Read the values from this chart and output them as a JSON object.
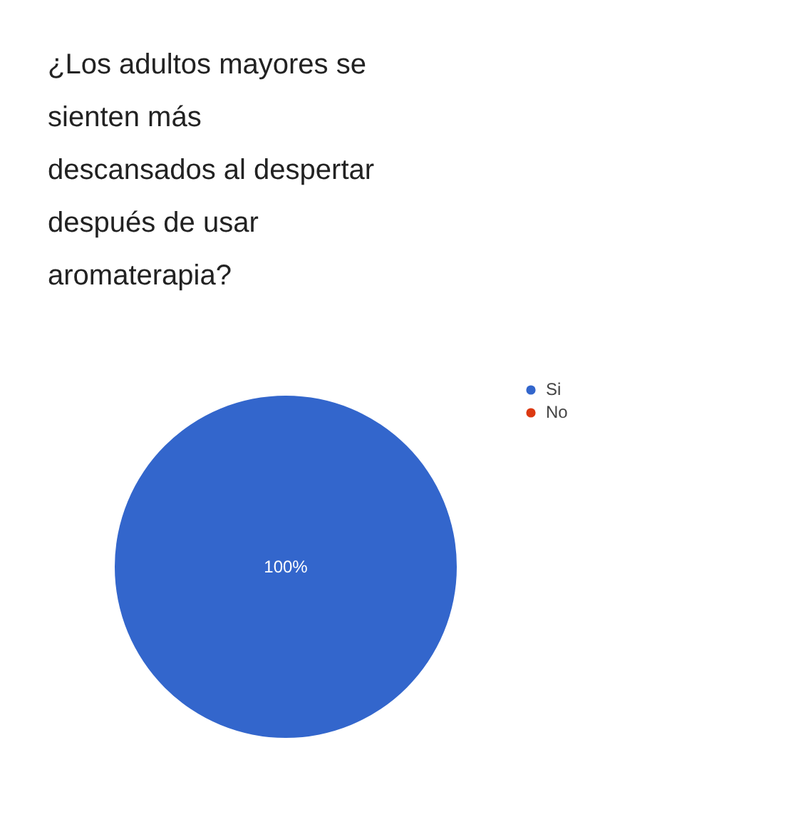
{
  "chart_data": {
    "type": "pie",
    "title": "¿Los adultos mayores se\nsienten más\ndescansados al despertar\ndespués de usar\naromaterapia?",
    "categories": [
      "Si",
      "No"
    ],
    "values": [
      100,
      0
    ],
    "colors": [
      "#3366cc",
      "#dc3912"
    ],
    "value_labels": [
      "100%",
      null
    ],
    "legend": "top right"
  }
}
